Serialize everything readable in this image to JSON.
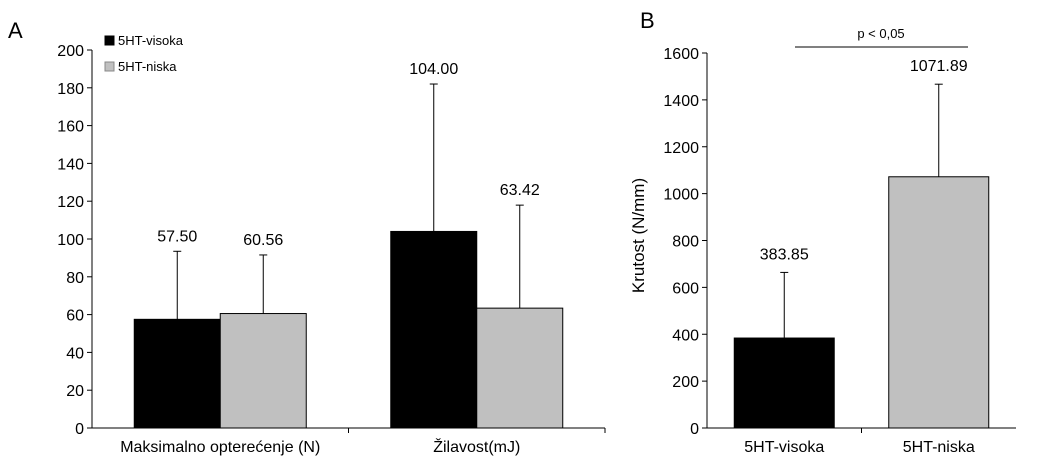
{
  "panel_a_label": "A",
  "panel_b_label": "B",
  "significance": "p < 0,05",
  "colors": {
    "visoka": "#000000",
    "niska": "#c0c0c0",
    "axis": "#000000"
  },
  "chart_data": [
    {
      "type": "bar",
      "panel": "A",
      "categories": [
        "Maksimalno opterećenje (N)",
        "Žilavost(mJ)"
      ],
      "series": [
        {
          "name": "5HT-visoka",
          "values": [
            57.5,
            104.0
          ],
          "error": [
            36,
            78
          ],
          "labels": [
            "57.50",
            "104.00"
          ]
        },
        {
          "name": "5HT-niska",
          "values": [
            60.56,
            63.42
          ],
          "error": [
            31,
            54.5
          ],
          "labels": [
            "60.56",
            "63.42"
          ]
        }
      ],
      "ylabel": "",
      "ylim": [
        0,
        200
      ],
      "yticks": [
        0,
        20,
        40,
        60,
        80,
        100,
        120,
        140,
        160,
        180,
        200
      ],
      "legend": "top-left",
      "grid": false
    },
    {
      "type": "bar",
      "panel": "B",
      "categories": [
        "5HT-visoka",
        "5HT-niska"
      ],
      "values": [
        383.85,
        1071.89
      ],
      "error": [
        280,
        395
      ],
      "labels": [
        "383.85",
        "1071.89"
      ],
      "ylabel": "Krutost  (N/mm)",
      "ylim": [
        0,
        1600
      ],
      "yticks": [
        0,
        200,
        400,
        600,
        800,
        1000,
        1200,
        1400,
        1600
      ],
      "grid": false
    }
  ]
}
